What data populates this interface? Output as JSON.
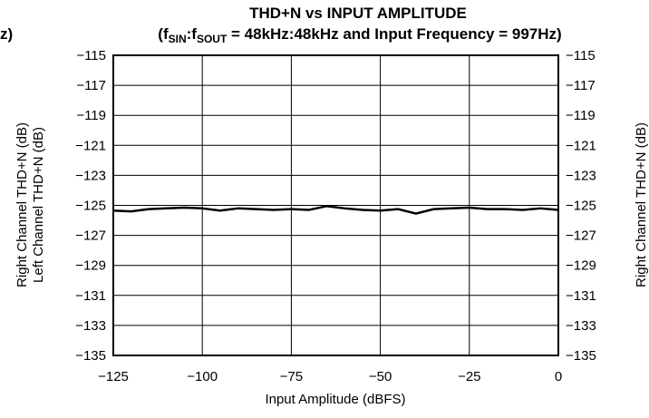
{
  "chart_data": {
    "type": "line",
    "title": "THD+N vs INPUT AMPLITUDE",
    "subtitle": {
      "prefix": "(f",
      "sub1": "SIN",
      "mid": ":f",
      "sub2": "SOUT",
      "suffix": " = 48kHz:48kHz and Input Frequency = 997Hz)"
    },
    "left_fragment": "z)",
    "xlabel": "Input Amplitude (dBFS)",
    "ylabel_left": [
      "Right Channel THD+N (dB)",
      "Left Channel THD+N (dB)"
    ],
    "ylabel_right": "Right Channel THD+N (dB)",
    "xlim": [
      -125,
      0
    ],
    "ylim": [
      -135,
      -115
    ],
    "xticks": [
      -125,
      -100,
      -75,
      -50,
      -25,
      0
    ],
    "xtick_labels": [
      "−125",
      "−100",
      "−75",
      "−50",
      "−25",
      "0"
    ],
    "yticks": [
      -115,
      -117,
      -119,
      -121,
      -123,
      -125,
      -127,
      -129,
      -131,
      -133,
      -135
    ],
    "ytick_labels": [
      "−115",
      "−117",
      "−119",
      "−121",
      "−123",
      "−125",
      "−127",
      "−129",
      "−131",
      "−133",
      "−135"
    ],
    "grid": true,
    "series": [
      {
        "x": [
          -125,
          -120,
          -115,
          -110,
          -105,
          -100,
          -95,
          -90,
          -85,
          -80,
          -75,
          -70,
          -65,
          -60,
          -55,
          -50,
          -45,
          -40,
          -35,
          -30,
          -25,
          -20,
          -15,
          -10,
          -5,
          0
        ],
        "y": [
          -125.35,
          -125.4,
          -125.25,
          -125.2,
          -125.15,
          -125.2,
          -125.35,
          -125.2,
          -125.25,
          -125.3,
          -125.25,
          -125.3,
          -125.05,
          -125.2,
          -125.3,
          -125.35,
          -125.25,
          -125.55,
          -125.25,
          -125.2,
          -125.15,
          -125.25,
          -125.25,
          -125.3,
          -125.2,
          -125.3
        ]
      }
    ]
  }
}
